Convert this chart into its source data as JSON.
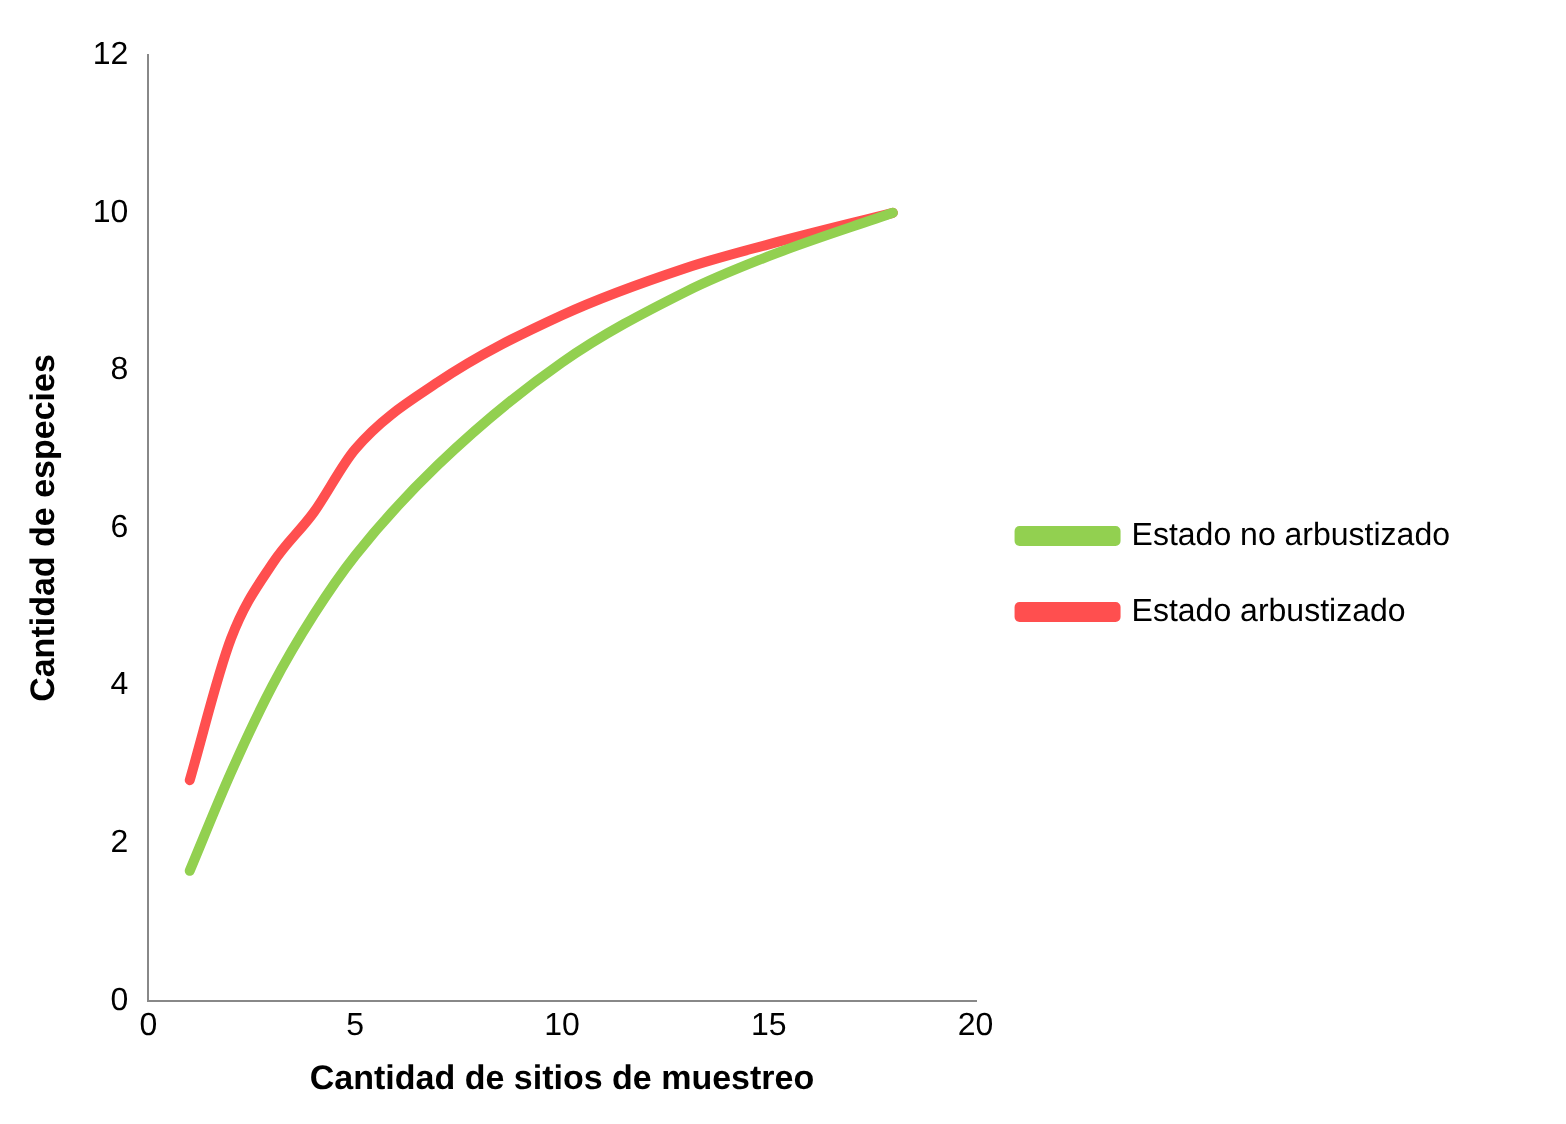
{
  "chart_data": {
    "type": "line",
    "xlabel": "Cantidad de sitios de muestreo",
    "ylabel": "Cantidad de especies",
    "x": [
      1,
      2,
      3,
      4,
      5,
      7,
      10,
      13,
      15,
      18
    ],
    "series": [
      {
        "name": "Estado no arbustizado",
        "color": "#92d050",
        "values": [
          1.65,
          2.9,
          4.0,
          4.9,
          5.65,
          6.8,
          8.1,
          9.0,
          9.45,
          10.0
        ]
      },
      {
        "name": "Estado arbustizado",
        "color": "#ff4f4f",
        "values": [
          2.8,
          4.6,
          5.55,
          6.2,
          7.0,
          7.85,
          8.7,
          9.3,
          9.6,
          10.0
        ]
      }
    ],
    "xlim": [
      0,
      20
    ],
    "xticks": [
      0,
      5,
      10,
      15,
      20
    ],
    "ylim": [
      0,
      12
    ],
    "yticks": [
      0,
      2,
      4,
      6,
      8,
      10,
      12
    ],
    "grid": false,
    "legend": "right",
    "marker": "none",
    "line_style": "solid"
  }
}
